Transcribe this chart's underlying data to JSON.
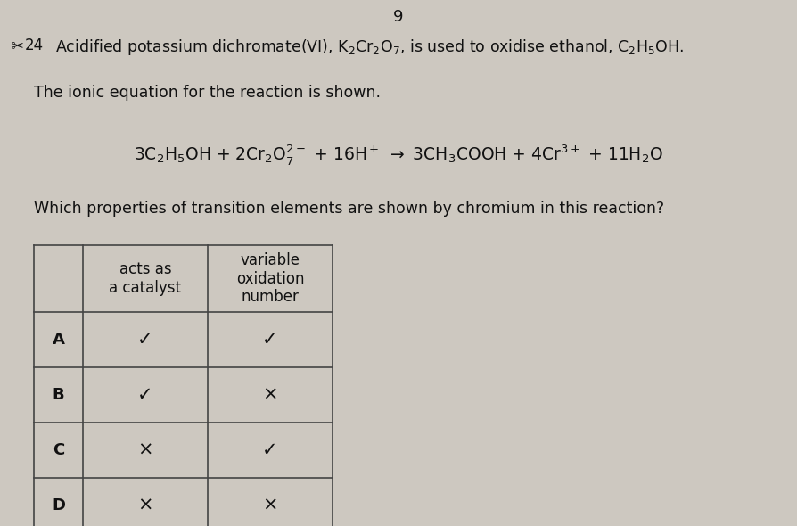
{
  "page_number": "9",
  "background_color": "#cdc8c0",
  "text_color": "#111111",
  "table": {
    "rows": [
      [
        "A",
        "✓",
        "✓"
      ],
      [
        "B",
        "✓",
        "×"
      ],
      [
        "C",
        "×",
        "✓"
      ],
      [
        "D",
        "×",
        "×"
      ]
    ]
  },
  "fig_w": 8.94,
  "fig_h": 5.9,
  "dpi": 100
}
